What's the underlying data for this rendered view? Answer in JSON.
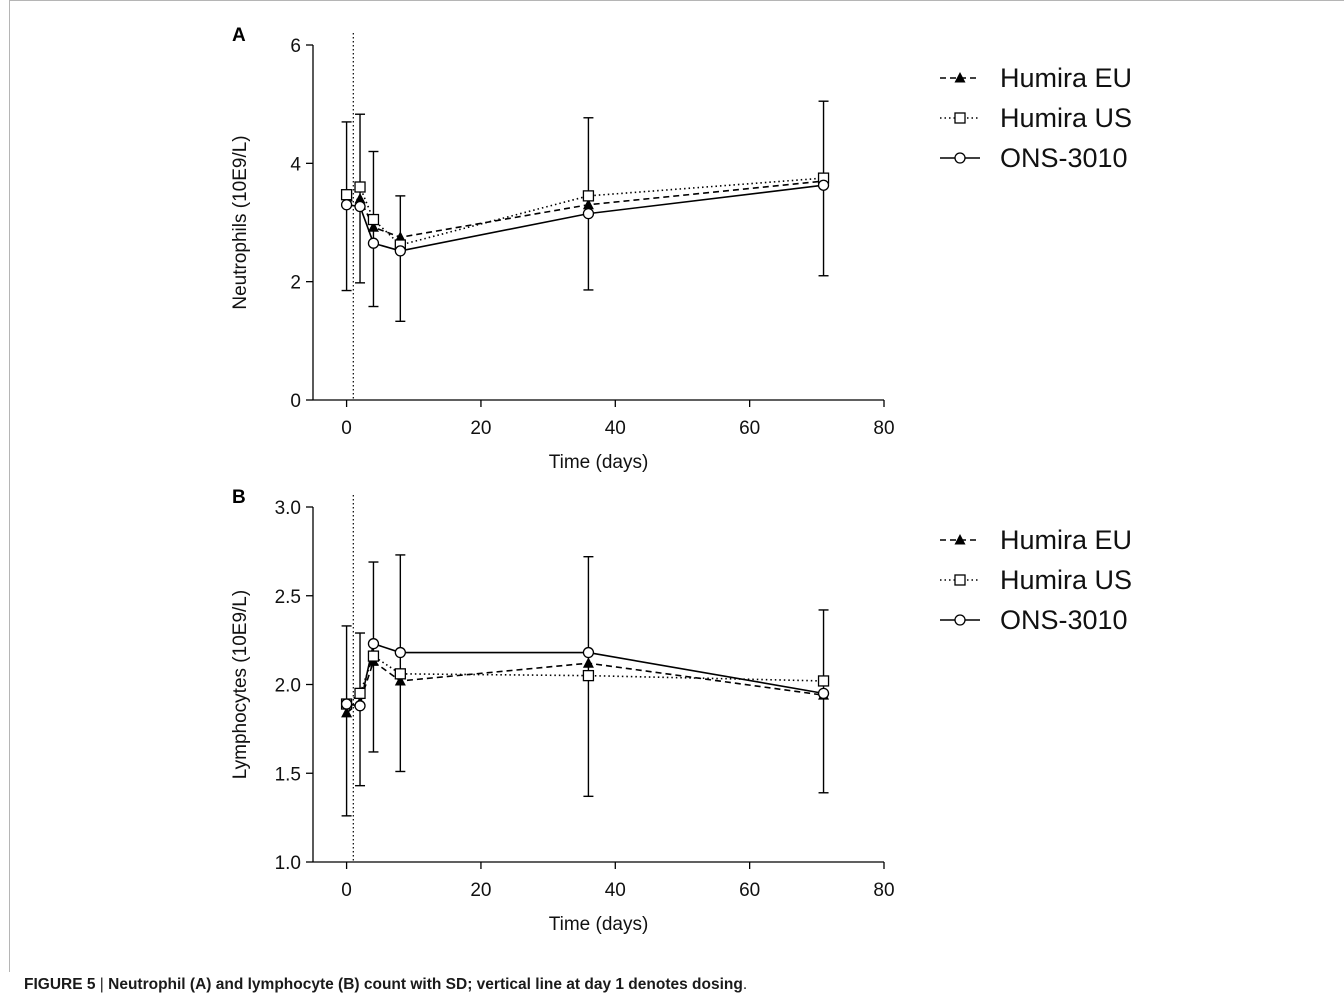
{
  "figure": {
    "caption_prefix": "FIGURE 5",
    "caption_sep": " | ",
    "caption_bold": "Neutrophil (A) and lymphocyte (B) count with SD; vertical line at day 1 denotes dosing",
    "caption_end": "."
  },
  "chart_data": [
    {
      "type": "line",
      "panel_label": "A",
      "xlabel": "Time (days)",
      "ylabel": "Neutrophils (10E9/L)",
      "xlim": [
        -5,
        80
      ],
      "ylim": [
        0,
        6
      ],
      "x_ticks": [
        0,
        20,
        40,
        60,
        80
      ],
      "y_ticks": [
        0,
        2,
        4,
        6
      ],
      "y_tick_labels": [
        "0",
        "2",
        "4",
        "6"
      ],
      "dosing_line_x": 1,
      "legend_position": "right",
      "series": [
        {
          "name": "Humira EU",
          "marker": "triangle",
          "line": "dashed",
          "x": [
            0,
            2,
            4,
            8,
            36,
            71
          ],
          "y": [
            3.35,
            3.4,
            2.92,
            2.75,
            3.3,
            3.7
          ]
        },
        {
          "name": "Humira US",
          "marker": "square",
          "line": "dotted",
          "x": [
            0,
            2,
            4,
            8,
            36,
            71
          ],
          "y": [
            3.47,
            3.6,
            3.05,
            2.62,
            3.45,
            3.75
          ]
        },
        {
          "name": "ONS-3010",
          "marker": "circle",
          "line": "solid",
          "x": [
            0,
            2,
            4,
            8,
            36,
            71
          ],
          "y": [
            3.3,
            3.27,
            2.65,
            2.52,
            3.15,
            3.63
          ]
        }
      ],
      "error_bars": [
        {
          "x": 0,
          "low": 1.85,
          "high": 4.7
        },
        {
          "x": 2,
          "low": 1.98,
          "high": 4.83
        },
        {
          "x": 4,
          "low": 1.58,
          "high": 4.2
        },
        {
          "x": 8,
          "low": 1.33,
          "high": 3.45
        },
        {
          "x": 36,
          "low": 1.86,
          "high": 4.77
        },
        {
          "x": 71,
          "low": 2.1,
          "high": 5.05
        }
      ]
    },
    {
      "type": "line",
      "panel_label": "B",
      "xlabel": "Time (days)",
      "ylabel": "Lymphocytes (10E9/L)",
      "xlim": [
        -5,
        80
      ],
      "ylim": [
        1.0,
        3.0
      ],
      "x_ticks": [
        0,
        20,
        40,
        60,
        80
      ],
      "y_ticks": [
        1.0,
        1.5,
        2.0,
        2.5,
        3.0
      ],
      "y_tick_labels": [
        "1.0",
        "1.5",
        "2.0",
        "2.5",
        "3.0"
      ],
      "dosing_line_x": 1,
      "legend_position": "right",
      "series": [
        {
          "name": "Humira EU",
          "marker": "triangle",
          "line": "dashed",
          "x": [
            0,
            2,
            4,
            8,
            36,
            71
          ],
          "y": [
            1.84,
            1.9,
            2.13,
            2.02,
            2.12,
            1.94
          ]
        },
        {
          "name": "Humira US",
          "marker": "square",
          "line": "dotted",
          "x": [
            0,
            2,
            4,
            8,
            36,
            71
          ],
          "y": [
            1.89,
            1.95,
            2.16,
            2.06,
            2.05,
            2.02
          ]
        },
        {
          "name": "ONS-3010",
          "marker": "circle",
          "line": "solid",
          "x": [
            0,
            2,
            4,
            8,
            36,
            71
          ],
          "y": [
            1.89,
            1.88,
            2.23,
            2.18,
            2.18,
            1.95
          ]
        }
      ],
      "error_bars": [
        {
          "x": 0,
          "low": 1.26,
          "high": 2.33
        },
        {
          "x": 2,
          "low": 1.43,
          "high": 2.29
        },
        {
          "x": 4,
          "low": 1.62,
          "high": 2.69
        },
        {
          "x": 8,
          "low": 1.51,
          "high": 2.73
        },
        {
          "x": 36,
          "low": 1.37,
          "high": 2.72
        },
        {
          "x": 71,
          "low": 1.39,
          "high": 2.42
        }
      ]
    }
  ]
}
